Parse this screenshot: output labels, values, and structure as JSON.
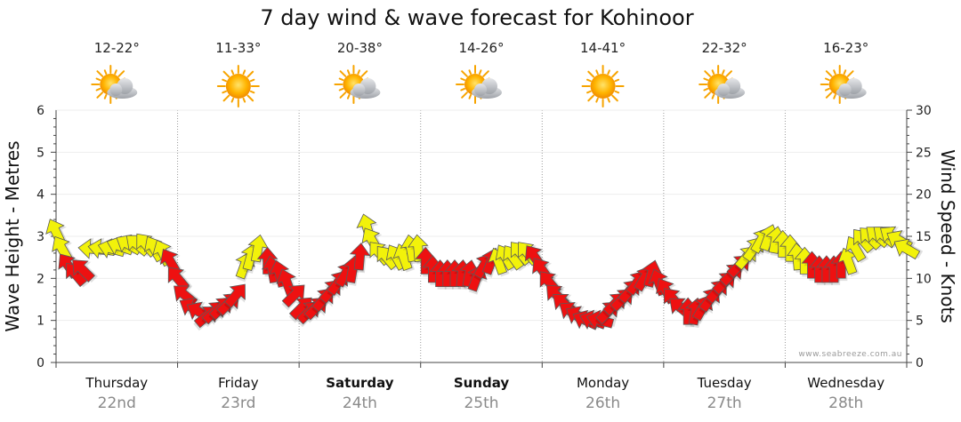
{
  "chart_data": {
    "type": "scatter",
    "title": "7 day wind & wave forecast for Kohinoor",
    "ylabel_left": "Wave Height - Metres",
    "ylabel_right": "Wind Speed - Knots",
    "ylim_left": [
      0,
      6
    ],
    "ylim_right": [
      0,
      30
    ],
    "yticks_left": [
      "0",
      "1",
      "2",
      "3",
      "4",
      "5",
      "6"
    ],
    "yticks_right": [
      "0",
      "5",
      "10",
      "15",
      "20",
      "25",
      "30"
    ],
    "credit": "www.seabreeze.com.au",
    "days": [
      {
        "name": "Thursday",
        "date": "22nd",
        "temp": "12-22°",
        "icon": "partly-cloudy-icon",
        "bold": false
      },
      {
        "name": "Friday",
        "date": "23rd",
        "temp": "11-33°",
        "icon": "sun-icon",
        "bold": false
      },
      {
        "name": "Saturday",
        "date": "24th",
        "temp": "20-38°",
        "icon": "partly-cloudy-icon",
        "bold": true
      },
      {
        "name": "Sunday",
        "date": "25th",
        "temp": "14-26°",
        "icon": "partly-cloudy-icon",
        "bold": true
      },
      {
        "name": "Monday",
        "date": "26th",
        "temp": "14-41°",
        "icon": "sun-icon",
        "bold": false
      },
      {
        "name": "Tuesday",
        "date": "27th",
        "temp": "22-32°",
        "icon": "partly-cloudy-icon",
        "bold": false
      },
      {
        "name": "Wednesday",
        "date": "28th",
        "temp": "16-23°",
        "icon": "partly-cloudy-icon",
        "bold": false
      }
    ],
    "colors": {
      "strong": "#ee1111",
      "moderate": "#f2f20a",
      "sun": "#f7a400",
      "cloud": "#b9bcc2"
    },
    "wind_series": [
      {
        "day": 0.0,
        "knots": 15.5,
        "dir": 335,
        "color": "yellow"
      },
      {
        "day": 0.05,
        "knots": 13.5,
        "dir": 330,
        "color": "yellow"
      },
      {
        "day": 0.1,
        "knots": 11.5,
        "dir": 325,
        "color": "red"
      },
      {
        "day": 0.16,
        "knots": 10.5,
        "dir": 320,
        "color": "red"
      },
      {
        "day": 0.22,
        "knots": 11.0,
        "dir": 315,
        "color": "red"
      },
      {
        "day": 0.3,
        "knots": 13.5,
        "dir": 275,
        "color": "yellow"
      },
      {
        "day": 0.38,
        "knots": 13.5,
        "dir": 280,
        "color": "yellow"
      },
      {
        "day": 0.46,
        "knots": 13.5,
        "dir": 285,
        "color": "yellow"
      },
      {
        "day": 0.53,
        "knots": 13.8,
        "dir": 290,
        "color": "yellow"
      },
      {
        "day": 0.6,
        "knots": 14.0,
        "dir": 300,
        "color": "yellow"
      },
      {
        "day": 0.67,
        "knots": 14.0,
        "dir": 310,
        "color": "yellow"
      },
      {
        "day": 0.74,
        "knots": 14.0,
        "dir": 320,
        "color": "yellow"
      },
      {
        "day": 0.81,
        "knots": 13.5,
        "dir": 330,
        "color": "yellow"
      },
      {
        "day": 0.88,
        "knots": 13.0,
        "dir": 335,
        "color": "yellow"
      },
      {
        "day": 0.94,
        "knots": 12.0,
        "dir": 330,
        "color": "red"
      },
      {
        "day": 1.0,
        "knots": 10.0,
        "dir": 320,
        "color": "red"
      },
      {
        "day": 1.06,
        "knots": 8.0,
        "dir": 310,
        "color": "red"
      },
      {
        "day": 1.12,
        "knots": 6.5,
        "dir": 300,
        "color": "red"
      },
      {
        "day": 1.18,
        "knots": 6.0,
        "dir": 300,
        "color": "red"
      },
      {
        "day": 1.24,
        "knots": 5.5,
        "dir": 50,
        "color": "red"
      },
      {
        "day": 1.3,
        "knots": 6.0,
        "dir": 45,
        "color": "red"
      },
      {
        "day": 1.36,
        "knots": 6.5,
        "dir": 45,
        "color": "red"
      },
      {
        "day": 1.42,
        "knots": 7.0,
        "dir": 45,
        "color": "red"
      },
      {
        "day": 1.48,
        "knots": 8.0,
        "dir": 40,
        "color": "red"
      },
      {
        "day": 1.55,
        "knots": 11.5,
        "dir": 20,
        "color": "yellow"
      },
      {
        "day": 1.6,
        "knots": 12.5,
        "dir": 15,
        "color": "yellow"
      },
      {
        "day": 1.66,
        "knots": 13.5,
        "dir": 10,
        "color": "yellow"
      },
      {
        "day": 1.74,
        "knots": 12.0,
        "dir": 0,
        "color": "red"
      },
      {
        "day": 1.78,
        "knots": 11.0,
        "dir": 350,
        "color": "red"
      },
      {
        "day": 1.84,
        "knots": 10.5,
        "dir": 345,
        "color": "red"
      },
      {
        "day": 1.9,
        "knots": 9.5,
        "dir": 340,
        "color": "red"
      },
      {
        "day": 1.96,
        "knots": 8.0,
        "dir": 45,
        "color": "red"
      },
      {
        "day": 2.02,
        "knots": 6.5,
        "dir": 45,
        "color": "red"
      },
      {
        "day": 2.08,
        "knots": 6.0,
        "dir": 45,
        "color": "red"
      },
      {
        "day": 2.14,
        "knots": 6.5,
        "dir": 45,
        "color": "red"
      },
      {
        "day": 2.2,
        "knots": 7.5,
        "dir": 40,
        "color": "red"
      },
      {
        "day": 2.26,
        "knots": 8.5,
        "dir": 40,
        "color": "red"
      },
      {
        "day": 2.32,
        "knots": 9.5,
        "dir": 35,
        "color": "red"
      },
      {
        "day": 2.38,
        "knots": 10.5,
        "dir": 30,
        "color": "red"
      },
      {
        "day": 2.44,
        "knots": 11.0,
        "dir": 10,
        "color": "red"
      },
      {
        "day": 2.5,
        "knots": 12.5,
        "dir": 5,
        "color": "red"
      },
      {
        "day": 2.56,
        "knots": 16.0,
        "dir": 345,
        "color": "yellow"
      },
      {
        "day": 2.6,
        "knots": 14.5,
        "dir": 330,
        "color": "yellow"
      },
      {
        "day": 2.66,
        "knots": 13.0,
        "dir": 320,
        "color": "yellow"
      },
      {
        "day": 2.72,
        "knots": 12.5,
        "dir": 320,
        "color": "yellow"
      },
      {
        "day": 2.8,
        "knots": 12.5,
        "dir": 330,
        "color": "yellow"
      },
      {
        "day": 2.86,
        "knots": 12.5,
        "dir": 340,
        "color": "yellow"
      },
      {
        "day": 2.92,
        "knots": 13.5,
        "dir": 350,
        "color": "yellow"
      },
      {
        "day": 2.98,
        "knots": 13.5,
        "dir": 355,
        "color": "yellow"
      },
      {
        "day": 3.04,
        "knots": 12.0,
        "dir": 0,
        "color": "red"
      },
      {
        "day": 3.1,
        "knots": 11.0,
        "dir": 0,
        "color": "red"
      },
      {
        "day": 3.16,
        "knots": 10.5,
        "dir": 0,
        "color": "red"
      },
      {
        "day": 3.22,
        "knots": 10.5,
        "dir": 0,
        "color": "red"
      },
      {
        "day": 3.28,
        "knots": 10.5,
        "dir": 0,
        "color": "red"
      },
      {
        "day": 3.34,
        "knots": 10.5,
        "dir": 5,
        "color": "red"
      },
      {
        "day": 3.4,
        "knots": 10.5,
        "dir": 10,
        "color": "red"
      },
      {
        "day": 3.46,
        "knots": 10.0,
        "dir": 20,
        "color": "red"
      },
      {
        "day": 3.52,
        "knots": 11.5,
        "dir": 30,
        "color": "red"
      },
      {
        "day": 3.58,
        "knots": 12.0,
        "dir": 20,
        "color": "red"
      },
      {
        "day": 3.64,
        "knots": 12.0,
        "dir": 340,
        "color": "yellow"
      },
      {
        "day": 3.7,
        "knots": 12.5,
        "dir": 330,
        "color": "yellow"
      },
      {
        "day": 3.76,
        "knots": 12.5,
        "dir": 325,
        "color": "yellow"
      },
      {
        "day": 3.82,
        "knots": 13.0,
        "dir": 320,
        "color": "yellow"
      },
      {
        "day": 3.88,
        "knots": 13.0,
        "dir": 320,
        "color": "yellow"
      },
      {
        "day": 3.94,
        "knots": 12.5,
        "dir": 325,
        "color": "red"
      },
      {
        "day": 4.0,
        "knots": 11.0,
        "dir": 325,
        "color": "red"
      },
      {
        "day": 4.06,
        "knots": 9.5,
        "dir": 320,
        "color": "red"
      },
      {
        "day": 4.12,
        "knots": 8.0,
        "dir": 315,
        "color": "red"
      },
      {
        "day": 4.18,
        "knots": 7.0,
        "dir": 310,
        "color": "red"
      },
      {
        "day": 4.24,
        "knots": 6.0,
        "dir": 305,
        "color": "red"
      },
      {
        "day": 4.3,
        "knots": 5.5,
        "dir": 300,
        "color": "red"
      },
      {
        "day": 4.36,
        "knots": 5.0,
        "dir": 295,
        "color": "red"
      },
      {
        "day": 4.42,
        "knots": 5.0,
        "dir": 290,
        "color": "red"
      },
      {
        "day": 4.48,
        "knots": 5.0,
        "dir": 285,
        "color": "red"
      },
      {
        "day": 4.54,
        "knots": 6.0,
        "dir": 45,
        "color": "red"
      },
      {
        "day": 4.6,
        "knots": 7.0,
        "dir": 45,
        "color": "red"
      },
      {
        "day": 4.66,
        "knots": 7.5,
        "dir": 45,
        "color": "red"
      },
      {
        "day": 4.72,
        "knots": 8.5,
        "dir": 40,
        "color": "red"
      },
      {
        "day": 4.78,
        "knots": 9.5,
        "dir": 35,
        "color": "red"
      },
      {
        "day": 4.84,
        "knots": 10.0,
        "dir": 30,
        "color": "red"
      },
      {
        "day": 4.9,
        "knots": 10.5,
        "dir": 15,
        "color": "red"
      },
      {
        "day": 4.96,
        "knots": 9.5,
        "dir": 340,
        "color": "red"
      },
      {
        "day": 5.02,
        "knots": 8.5,
        "dir": 330,
        "color": "red"
      },
      {
        "day": 5.08,
        "knots": 7.5,
        "dir": 320,
        "color": "red"
      },
      {
        "day": 5.14,
        "knots": 6.5,
        "dir": 310,
        "color": "red"
      },
      {
        "day": 5.2,
        "knots": 6.0,
        "dir": 0,
        "color": "red"
      },
      {
        "day": 5.26,
        "knots": 6.0,
        "dir": 10,
        "color": "red"
      },
      {
        "day": 5.32,
        "knots": 6.5,
        "dir": 30,
        "color": "red"
      },
      {
        "day": 5.38,
        "knots": 7.5,
        "dir": 35,
        "color": "red"
      },
      {
        "day": 5.44,
        "knots": 8.5,
        "dir": 40,
        "color": "red"
      },
      {
        "day": 5.5,
        "knots": 9.5,
        "dir": 45,
        "color": "red"
      },
      {
        "day": 5.56,
        "knots": 10.5,
        "dir": 45,
        "color": "red"
      },
      {
        "day": 5.62,
        "knots": 11.5,
        "dir": 45,
        "color": "red"
      },
      {
        "day": 5.68,
        "knots": 12.5,
        "dir": 40,
        "color": "yellow"
      },
      {
        "day": 5.74,
        "knots": 13.5,
        "dir": 35,
        "color": "yellow"
      },
      {
        "day": 5.8,
        "knots": 14.5,
        "dir": 30,
        "color": "yellow"
      },
      {
        "day": 5.86,
        "knots": 14.8,
        "dir": 20,
        "color": "yellow"
      },
      {
        "day": 5.92,
        "knots": 14.5,
        "dir": 10,
        "color": "yellow"
      },
      {
        "day": 5.98,
        "knots": 14.0,
        "dir": 0,
        "color": "yellow"
      },
      {
        "day": 6.04,
        "knots": 13.5,
        "dir": 0,
        "color": "yellow"
      },
      {
        "day": 6.1,
        "knots": 12.5,
        "dir": 355,
        "color": "yellow"
      },
      {
        "day": 6.16,
        "knots": 12.0,
        "dir": 0,
        "color": "yellow"
      },
      {
        "day": 6.22,
        "knots": 11.5,
        "dir": 0,
        "color": "red"
      },
      {
        "day": 6.28,
        "knots": 11.0,
        "dir": 0,
        "color": "red"
      },
      {
        "day": 6.34,
        "knots": 11.0,
        "dir": 0,
        "color": "red"
      },
      {
        "day": 6.4,
        "knots": 11.0,
        "dir": 0,
        "color": "red"
      },
      {
        "day": 6.46,
        "knots": 11.5,
        "dir": 0,
        "color": "red"
      },
      {
        "day": 6.52,
        "knots": 12.0,
        "dir": 340,
        "color": "yellow"
      },
      {
        "day": 6.58,
        "knots": 13.5,
        "dir": 330,
        "color": "yellow"
      },
      {
        "day": 6.64,
        "knots": 14.5,
        "dir": 320,
        "color": "yellow"
      },
      {
        "day": 6.7,
        "knots": 14.8,
        "dir": 315,
        "color": "yellow"
      },
      {
        "day": 6.76,
        "knots": 15.0,
        "dir": 310,
        "color": "yellow"
      },
      {
        "day": 6.82,
        "knots": 15.0,
        "dir": 310,
        "color": "yellow"
      },
      {
        "day": 6.88,
        "knots": 15.0,
        "dir": 305,
        "color": "yellow"
      },
      {
        "day": 6.94,
        "knots": 14.5,
        "dir": 300,
        "color": "yellow"
      },
      {
        "day": 7.0,
        "knots": 13.5,
        "dir": 300,
        "color": "yellow"
      }
    ]
  }
}
